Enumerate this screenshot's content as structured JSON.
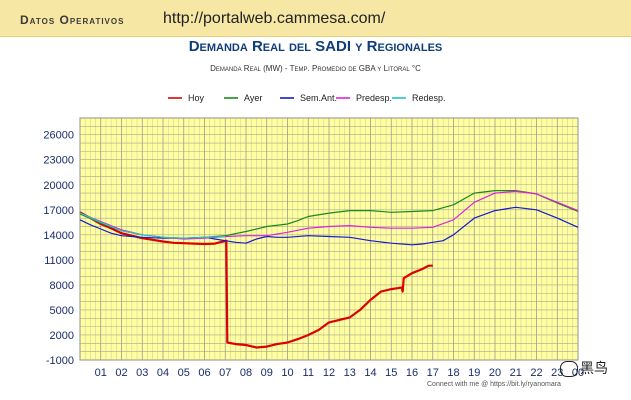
{
  "header": {
    "section_label": "Datos Operativos",
    "url": "http://portalweb.cammesa.com/"
  },
  "chart_data": {
    "type": "line",
    "title": "Demanda Real del SADI y Regionales",
    "subtitle": "Demanda Real (MW) - Temp. Promedio de GBA y Litoral °C",
    "x_ticks": [
      "01",
      "02",
      "03",
      "04",
      "05",
      "06",
      "07",
      "08",
      "09",
      "10",
      "11",
      "12",
      "13",
      "14",
      "15",
      "16",
      "17",
      "18",
      "19",
      "20",
      "21",
      "22",
      "23",
      "00"
    ],
    "y_ticks": [
      "26000",
      "23000",
      "20000",
      "17000",
      "14000",
      "11000",
      "8000",
      "5000",
      "2000",
      "-1000"
    ],
    "y_tick_values": [
      26000,
      23000,
      20000,
      17000,
      14000,
      11000,
      8000,
      5000,
      2000,
      -1000
    ],
    "ylim": [
      -1000,
      28000
    ],
    "xlim": [
      0,
      24
    ],
    "grid": true,
    "legend_position": "top",
    "background": "#ffffa0",
    "series": [
      {
        "name": "Hoy",
        "color": "#dd0000",
        "width": 2.2,
        "points": [
          [
            0,
            16700
          ],
          [
            0.5,
            16000
          ],
          [
            1,
            15300
          ],
          [
            1.5,
            14800
          ],
          [
            2,
            14200
          ],
          [
            2.5,
            13900
          ],
          [
            3,
            13600
          ],
          [
            3.5,
            13400
          ],
          [
            4,
            13200
          ],
          [
            4.5,
            13050
          ],
          [
            5,
            13000
          ],
          [
            5.5,
            12950
          ],
          [
            6,
            12900
          ],
          [
            6.5,
            12950
          ],
          [
            6.9,
            13200
          ],
          [
            7.05,
            13300
          ],
          [
            7.1,
            1100
          ],
          [
            7.5,
            900
          ],
          [
            8,
            800
          ],
          [
            8.5,
            500
          ],
          [
            9,
            600
          ],
          [
            9.5,
            900
          ],
          [
            10,
            1100
          ],
          [
            10.5,
            1500
          ],
          [
            11,
            2000
          ],
          [
            11.5,
            2600
          ],
          [
            12,
            3500
          ],
          [
            12.5,
            3800
          ],
          [
            13,
            4100
          ],
          [
            13.5,
            5000
          ],
          [
            14,
            6200
          ],
          [
            14.5,
            7200
          ],
          [
            15,
            7500
          ],
          [
            15.3,
            7600
          ],
          [
            15.5,
            7700
          ],
          [
            15.55,
            7200
          ],
          [
            15.6,
            8800
          ],
          [
            16,
            9400
          ],
          [
            16.5,
            9900
          ],
          [
            16.8,
            10300
          ],
          [
            17,
            10300
          ]
        ]
      },
      {
        "name": "Ayer",
        "color": "#1a8a1a",
        "width": 1.2,
        "points": [
          [
            0,
            16500
          ],
          [
            1,
            15400
          ],
          [
            2,
            14500
          ],
          [
            3,
            14000
          ],
          [
            4,
            13700
          ],
          [
            5,
            13600
          ],
          [
            6,
            13700
          ],
          [
            7,
            13900
          ],
          [
            8,
            14400
          ],
          [
            9,
            15000
          ],
          [
            10,
            15300
          ],
          [
            10.5,
            15700
          ],
          [
            11,
            16200
          ],
          [
            12,
            16600
          ],
          [
            13,
            16900
          ],
          [
            14,
            16900
          ],
          [
            15,
            16700
          ],
          [
            16,
            16800
          ],
          [
            17,
            16900
          ],
          [
            18,
            17600
          ],
          [
            19,
            19000
          ],
          [
            20,
            19300
          ],
          [
            21,
            19300
          ],
          [
            22,
            18900
          ],
          [
            23,
            17800
          ],
          [
            24,
            16800
          ]
        ]
      },
      {
        "name": "Sem.Ant.",
        "color": "#1a1acc",
        "width": 1.2,
        "points": [
          [
            0,
            15800
          ],
          [
            0.5,
            15200
          ],
          [
            1,
            14700
          ],
          [
            1.5,
            14200
          ],
          [
            2,
            13900
          ],
          [
            3,
            13700
          ],
          [
            4,
            13600
          ],
          [
            5,
            13600
          ],
          [
            6,
            13700
          ],
          [
            6.5,
            13500
          ],
          [
            7,
            13300
          ],
          [
            7.5,
            13100
          ],
          [
            8,
            13000
          ],
          [
            8.5,
            13500
          ],
          [
            9,
            13800
          ],
          [
            9.5,
            13700
          ],
          [
            10,
            13700
          ],
          [
            11,
            13900
          ],
          [
            12,
            13800
          ],
          [
            13,
            13700
          ],
          [
            14,
            13300
          ],
          [
            15,
            13000
          ],
          [
            16,
            12800
          ],
          [
            16.5,
            12900
          ],
          [
            17,
            13100
          ],
          [
            17.5,
            13300
          ],
          [
            18,
            14000
          ],
          [
            19,
            16000
          ],
          [
            20,
            16900
          ],
          [
            21,
            17300
          ],
          [
            22,
            17000
          ],
          [
            23,
            16000
          ],
          [
            24,
            14900
          ]
        ]
      },
      {
        "name": "Predesp.",
        "color": "#dd22dd",
        "width": 1.2,
        "points": [
          [
            0,
            16600
          ],
          [
            1,
            15600
          ],
          [
            2,
            14600
          ],
          [
            3,
            14000
          ],
          [
            4,
            13700
          ],
          [
            5,
            13500
          ],
          [
            6,
            13600
          ],
          [
            7,
            13800
          ],
          [
            8,
            13900
          ],
          [
            9,
            13900
          ],
          [
            10,
            14300
          ],
          [
            11,
            14800
          ],
          [
            12,
            15000
          ],
          [
            13,
            15100
          ],
          [
            14,
            14900
          ],
          [
            15,
            14800
          ],
          [
            16,
            14800
          ],
          [
            17,
            14900
          ],
          [
            18,
            15800
          ],
          [
            19,
            17900
          ],
          [
            20,
            19000
          ],
          [
            21,
            19200
          ],
          [
            22,
            18900
          ],
          [
            23,
            17900
          ],
          [
            24,
            16900
          ]
        ]
      },
      {
        "name": "Redesp.",
        "color": "#22c4c4",
        "width": 1.2,
        "points": [
          [
            0,
            16600
          ],
          [
            1,
            15500
          ],
          [
            2,
            14500
          ],
          [
            3,
            14000
          ],
          [
            4,
            13700
          ],
          [
            5,
            13600
          ],
          [
            6,
            13700
          ],
          [
            7,
            13800
          ]
        ]
      }
    ]
  },
  "watermark": {
    "text": "黑鸟"
  },
  "credit": "Connect with me @ https://bit.ly/ryanomara"
}
